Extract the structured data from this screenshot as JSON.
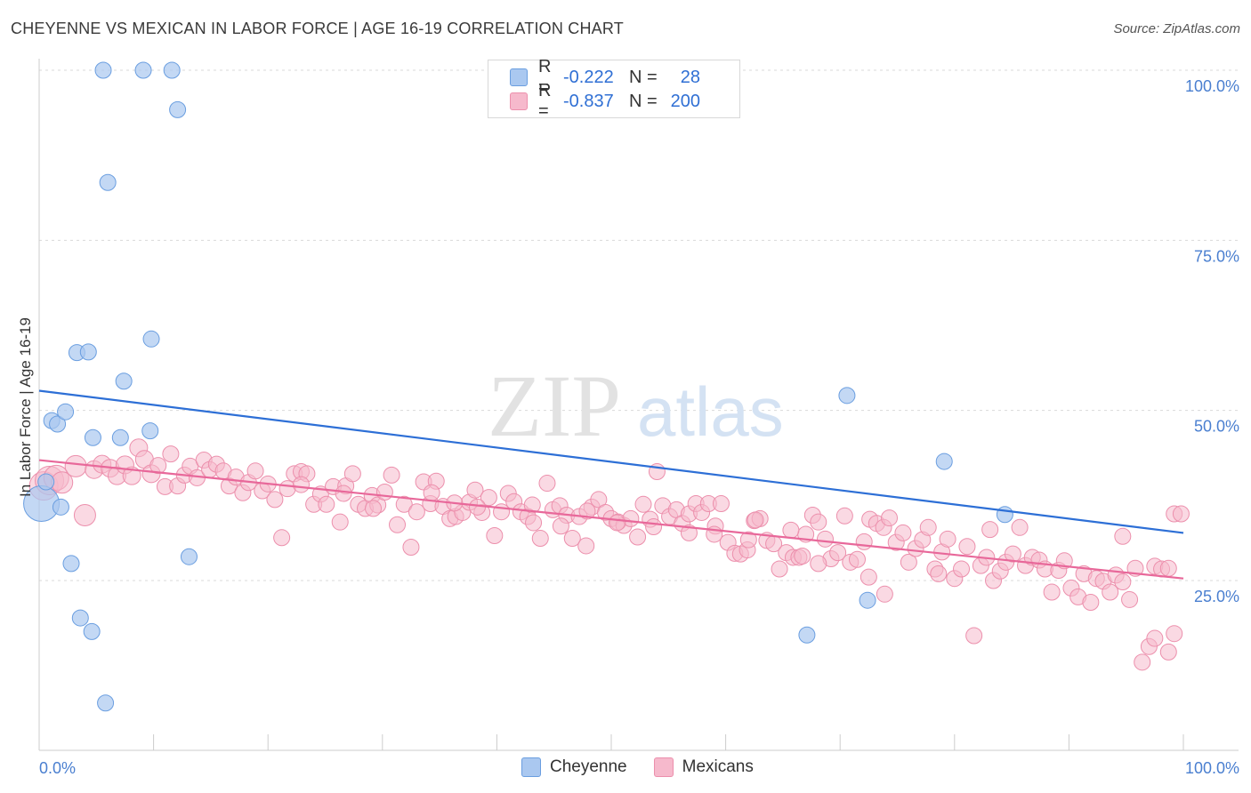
{
  "title": "CHEYENNE VS MEXICAN IN LABOR FORCE | AGE 16-19 CORRELATION CHART",
  "source": "Source: ZipAtlas.com",
  "watermark": {
    "zip": "ZIP",
    "atlas": "atlas"
  },
  "colors": {
    "cheyenne_fill": "#aac8f0",
    "cheyenne_stroke": "#6a9ee0",
    "cheyenne_line": "#2d6fd6",
    "mexicans_fill": "#f6b9cc",
    "mexicans_stroke": "#ec8fac",
    "mexicans_line": "#e8689a",
    "tick_text": "#4a7fd0"
  },
  "legend": {
    "rows": [
      {
        "r_label": "R =",
        "r_value": "-0.222",
        "n_label": "N =",
        "n_value": "28"
      },
      {
        "r_label": "R =",
        "r_value": "-0.837",
        "n_label": "N =",
        "n_value": "200"
      }
    ]
  },
  "bottom_legend": {
    "cheyenne": "Cheyenne",
    "mexicans": "Mexicans"
  },
  "chart_data": {
    "type": "scatter",
    "xlabel": "",
    "ylabel": "In Labor Force | Age 16-19",
    "xlim": [
      0,
      100
    ],
    "ylim": [
      0,
      105
    ],
    "x_tick_labels": [
      "0.0%",
      "100.0%"
    ],
    "y_ticks": [
      25,
      50,
      75,
      100
    ],
    "y_tick_labels": [
      "25.0%",
      "50.0%",
      "75.0%",
      "100.0%"
    ],
    "grid": true,
    "series": [
      {
        "name": "Cheyenne",
        "trend": {
          "x": [
            0,
            100
          ],
          "y": [
            52.9,
            32.0
          ]
        },
        "points": [
          [
            0.2,
            36.3,
            20
          ],
          [
            0.6,
            39.5,
            9
          ],
          [
            1.1,
            48.5,
            9
          ],
          [
            1.6,
            48,
            9
          ],
          [
            1.9,
            35.8,
            9
          ],
          [
            2.3,
            49.8,
            9
          ],
          [
            2.8,
            27.5,
            9
          ],
          [
            3.3,
            58.5,
            9
          ],
          [
            3.6,
            19.5,
            9
          ],
          [
            4.3,
            58.6,
            9
          ],
          [
            4.6,
            17.5,
            9
          ],
          [
            4.7,
            46,
            9
          ],
          [
            5.6,
            100,
            9
          ],
          [
            5.8,
            7,
            9
          ],
          [
            6.0,
            83.5,
            9
          ],
          [
            7.1,
            46,
            9
          ],
          [
            7.4,
            54.3,
            9
          ],
          [
            9.1,
            100,
            9
          ],
          [
            9.7,
            47,
            9
          ],
          [
            9.8,
            60.5,
            9
          ],
          [
            11.6,
            100,
            9
          ],
          [
            12.1,
            94.2,
            9
          ],
          [
            13.1,
            28.5,
            9
          ],
          [
            67.1,
            17,
            9
          ],
          [
            70.6,
            52.2,
            9
          ],
          [
            72.4,
            22.1,
            9
          ],
          [
            79.1,
            42.5,
            9
          ],
          [
            84.4,
            34.7,
            9
          ]
        ]
      },
      {
        "name": "Mexicans",
        "trend": {
          "x": [
            0,
            100
          ],
          "y": [
            42.7,
            25.3
          ]
        },
        "points": [
          [
            0.4,
            38.9,
            16
          ],
          [
            0.9,
            39.7,
            16
          ],
          [
            1.5,
            40.1,
            14
          ],
          [
            2.0,
            39.4,
            12
          ],
          [
            3.2,
            41.8,
            12
          ],
          [
            4.0,
            34.6,
            12
          ],
          [
            4.8,
            41.3,
            10
          ],
          [
            5.5,
            42.1,
            10
          ],
          [
            6.2,
            41.5,
            10
          ],
          [
            6.8,
            40.4,
            10
          ],
          [
            7.5,
            42.0,
            10
          ],
          [
            8.1,
            40.4,
            10
          ],
          [
            8.7,
            44.5,
            10
          ],
          [
            9.2,
            42.8,
            10
          ],
          [
            9.8,
            40.7,
            10
          ],
          [
            10.4,
            41.9,
            9
          ],
          [
            11.0,
            38.8,
            9
          ],
          [
            11.5,
            43.6,
            9
          ],
          [
            12.1,
            38.9,
            9
          ],
          [
            12.7,
            40.5,
            9
          ],
          [
            13.2,
            41.8,
            9
          ],
          [
            13.8,
            40.1,
            9
          ],
          [
            14.4,
            42.7,
            9
          ],
          [
            14.9,
            41.3,
            9
          ],
          [
            15.5,
            42.1,
            9
          ],
          [
            16.1,
            41.1,
            9
          ],
          [
            16.6,
            38.9,
            9
          ],
          [
            17.2,
            40.2,
            9
          ],
          [
            17.8,
            37.9,
            9
          ],
          [
            18.3,
            39.4,
            9
          ],
          [
            18.9,
            41.1,
            9
          ],
          [
            19.5,
            38.2,
            9
          ],
          [
            20.0,
            39.2,
            9
          ],
          [
            20.6,
            36.9,
            9
          ],
          [
            21.2,
            31.3,
            9
          ],
          [
            21.7,
            38.5,
            9
          ],
          [
            22.3,
            40.7,
            9
          ],
          [
            22.9,
            41.0,
            9
          ],
          [
            23.4,
            40.7,
            9
          ],
          [
            24.0,
            36.2,
            9
          ],
          [
            24.6,
            37.7,
            9
          ],
          [
            25.1,
            36.2,
            9
          ],
          [
            25.7,
            38.8,
            9
          ],
          [
            26.3,
            33.6,
            9
          ],
          [
            26.8,
            38.9,
            9
          ],
          [
            27.4,
            40.7,
            9
          ],
          [
            27.9,
            36.2,
            9
          ],
          [
            28.5,
            35.6,
            9
          ],
          [
            29.1,
            37.5,
            9
          ],
          [
            29.6,
            36.1,
            9
          ],
          [
            30.2,
            38.0,
            9
          ],
          [
            30.8,
            40.5,
            9
          ],
          [
            31.3,
            33.2,
            9
          ],
          [
            31.9,
            36.2,
            9
          ],
          [
            32.5,
            29.9,
            9
          ],
          [
            33.0,
            35.1,
            9
          ],
          [
            33.6,
            39.5,
            9
          ],
          [
            34.2,
            36.3,
            9
          ],
          [
            34.7,
            39.6,
            9
          ],
          [
            35.3,
            35.9,
            9
          ],
          [
            35.9,
            34.1,
            9
          ],
          [
            36.4,
            34.4,
            9
          ],
          [
            37.0,
            35.0,
            9
          ],
          [
            37.6,
            36.5,
            9
          ],
          [
            38.1,
            38.3,
            9
          ],
          [
            38.7,
            35.0,
            9
          ],
          [
            39.3,
            37.2,
            9
          ],
          [
            39.8,
            31.6,
            9
          ],
          [
            40.4,
            35.1,
            9
          ],
          [
            41.0,
            37.8,
            9
          ],
          [
            41.5,
            36.6,
            9
          ],
          [
            42.1,
            35.1,
            9
          ],
          [
            42.7,
            34.4,
            9
          ],
          [
            43.2,
            33.5,
            9
          ],
          [
            43.8,
            31.2,
            9
          ],
          [
            44.4,
            39.3,
            9
          ],
          [
            44.9,
            35.4,
            9
          ],
          [
            45.5,
            36.0,
            9
          ],
          [
            46.1,
            34.6,
            9
          ],
          [
            46.6,
            31.2,
            9
          ],
          [
            47.2,
            34.4,
            9
          ],
          [
            47.8,
            30.1,
            9
          ],
          [
            48.3,
            35.8,
            9
          ],
          [
            48.9,
            36.9,
            9
          ],
          [
            49.5,
            35.0,
            9
          ],
          [
            50.0,
            34.1,
            9
          ],
          [
            50.6,
            33.6,
            9
          ],
          [
            51.1,
            33.1,
            9
          ],
          [
            51.7,
            34.1,
            9
          ],
          [
            52.3,
            31.4,
            9
          ],
          [
            52.8,
            36.2,
            9
          ],
          [
            53.4,
            34.0,
            9
          ],
          [
            54.0,
            41.0,
            9
          ],
          [
            54.5,
            36.0,
            9
          ],
          [
            55.1,
            34.4,
            9
          ],
          [
            55.7,
            35.4,
            9
          ],
          [
            56.2,
            33.4,
            9
          ],
          [
            56.8,
            34.8,
            9
          ],
          [
            57.4,
            36.3,
            9
          ],
          [
            57.9,
            35.0,
            9
          ],
          [
            58.5,
            36.3,
            9
          ],
          [
            59.1,
            33.0,
            9
          ],
          [
            59.6,
            36.3,
            9
          ],
          [
            60.2,
            30.6,
            9
          ],
          [
            60.8,
            29.0,
            9
          ],
          [
            61.3,
            28.9,
            9
          ],
          [
            61.9,
            29.5,
            9
          ],
          [
            62.5,
            33.8,
            9
          ],
          [
            63.0,
            34.1,
            9
          ],
          [
            63.6,
            30.9,
            9
          ],
          [
            64.2,
            30.4,
            9
          ],
          [
            64.7,
            26.7,
            9
          ],
          [
            65.3,
            29.1,
            9
          ],
          [
            65.9,
            28.4,
            9
          ],
          [
            66.4,
            28.4,
            9
          ],
          [
            67.0,
            31.8,
            9
          ],
          [
            67.6,
            34.6,
            9
          ],
          [
            68.1,
            33.6,
            9
          ],
          [
            68.7,
            31.1,
            9
          ],
          [
            69.2,
            28.2,
            9
          ],
          [
            69.8,
            29.1,
            9
          ],
          [
            70.4,
            34.5,
            9
          ],
          [
            70.9,
            27.7,
            9
          ],
          [
            71.5,
            28.1,
            9
          ],
          [
            72.1,
            30.7,
            9
          ],
          [
            72.6,
            34.0,
            9
          ],
          [
            73.2,
            33.4,
            9
          ],
          [
            73.8,
            32.8,
            9
          ],
          [
            74.3,
            34.2,
            9
          ],
          [
            74.9,
            30.6,
            9
          ],
          [
            75.5,
            32.0,
            9
          ],
          [
            76.0,
            27.7,
            9
          ],
          [
            76.6,
            29.7,
            9
          ],
          [
            77.2,
            31.0,
            9
          ],
          [
            77.7,
            32.8,
            9
          ],
          [
            78.3,
            26.7,
            9
          ],
          [
            78.9,
            29.2,
            9
          ],
          [
            79.4,
            31.1,
            9
          ],
          [
            80.0,
            25.3,
            9
          ],
          [
            80.6,
            26.7,
            9
          ],
          [
            81.1,
            30.0,
            9
          ],
          [
            81.7,
            16.9,
            9
          ],
          [
            82.3,
            27.2,
            9
          ],
          [
            82.8,
            28.4,
            9
          ],
          [
            83.4,
            25.0,
            9
          ],
          [
            84.0,
            26.4,
            9
          ],
          [
            84.5,
            27.7,
            9
          ],
          [
            85.1,
            28.9,
            9
          ],
          [
            85.7,
            32.8,
            9
          ],
          [
            86.2,
            27.2,
            9
          ],
          [
            86.8,
            28.4,
            9
          ],
          [
            87.4,
            28.0,
            9
          ],
          [
            87.9,
            26.7,
            9
          ],
          [
            88.5,
            23.3,
            9
          ],
          [
            89.1,
            26.5,
            9
          ],
          [
            89.6,
            27.9,
            9
          ],
          [
            90.2,
            23.9,
            9
          ],
          [
            90.8,
            22.6,
            9
          ],
          [
            91.3,
            26.0,
            9
          ],
          [
            91.9,
            21.8,
            9
          ],
          [
            92.4,
            25.3,
            9
          ],
          [
            93.0,
            24.9,
            9
          ],
          [
            93.6,
            23.3,
            9
          ],
          [
            94.1,
            25.8,
            9
          ],
          [
            94.7,
            24.8,
            9
          ],
          [
            95.3,
            22.2,
            9
          ],
          [
            95.8,
            26.8,
            9
          ],
          [
            96.4,
            13.0,
            9
          ],
          [
            97.0,
            15.3,
            9
          ],
          [
            97.5,
            27.1,
            9
          ],
          [
            98.1,
            26.7,
            9
          ],
          [
            98.7,
            26.8,
            9
          ],
          [
            99.2,
            34.8,
            9
          ],
          [
            99.8,
            34.8,
            9
          ],
          [
            94.7,
            31.5,
            9
          ],
          [
            97.5,
            16.5,
            9
          ],
          [
            98.7,
            14.5,
            9
          ],
          [
            99.2,
            17.2,
            9
          ],
          [
            83.1,
            32.5,
            9
          ],
          [
            78.6,
            26.0,
            9
          ],
          [
            73.9,
            23.0,
            9
          ],
          [
            72.5,
            25.5,
            9
          ],
          [
            68.1,
            27.5,
            9
          ],
          [
            66.7,
            28.6,
            9
          ],
          [
            65.7,
            32.4,
            9
          ],
          [
            62.6,
            33.9,
            9
          ],
          [
            62.0,
            31.0,
            9
          ],
          [
            59.0,
            31.8,
            9
          ],
          [
            56.8,
            32.0,
            9
          ],
          [
            53.7,
            32.9,
            9
          ],
          [
            50.5,
            33.5,
            9
          ],
          [
            47.9,
            35.2,
            9
          ],
          [
            45.6,
            33.0,
            9
          ],
          [
            43.1,
            36.1,
            9
          ],
          [
            38.3,
            35.8,
            9
          ],
          [
            36.3,
            36.4,
            9
          ],
          [
            34.3,
            37.9,
            9
          ],
          [
            29.2,
            35.6,
            9
          ],
          [
            26.6,
            37.8,
            9
          ],
          [
            22.9,
            39.1,
            9
          ]
        ]
      }
    ]
  }
}
